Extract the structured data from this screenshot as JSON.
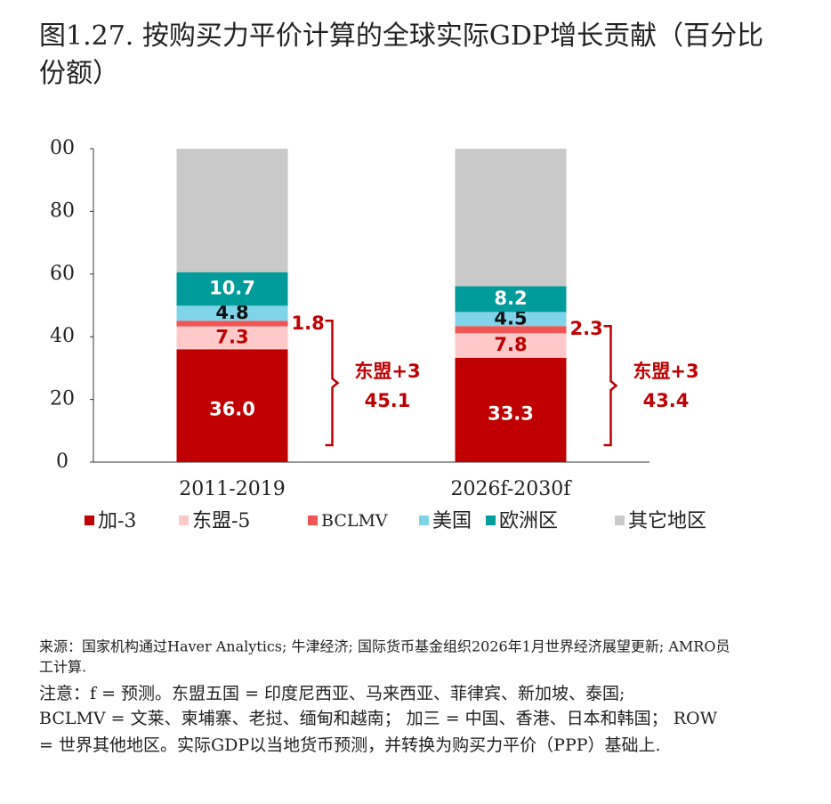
{
  "chart_data": {
    "type": "stacked_bar",
    "title": "图1.27. 按购买力平价计算的全球实际GDP增长贡献（百分比",
    "subtitle": "份额）",
    "categories": [
      "2011-2019",
      "2026f-2030f"
    ],
    "series": [
      {
        "name": "加-3",
        "color": "#c00000",
        "values": [
          36.0,
          33.3
        ],
        "value_labels": [
          "36.0",
          "33.3"
        ]
      },
      {
        "name": "东盟-5",
        "color": "#ffc9c9",
        "values": [
          7.3,
          7.8
        ],
        "value_labels": [
          "7.3",
          "7.8"
        ]
      },
      {
        "name": "BCLMV",
        "color": "#f05555",
        "values": [
          1.8,
          2.3
        ],
        "value_labels": [
          "1.8",
          "2.3"
        ]
      },
      {
        "name": "美国",
        "color": "#80d4ea",
        "values": [
          4.8,
          4.5
        ],
        "value_labels": [
          "4.8",
          "4.5"
        ]
      },
      {
        "name": "欧洲区",
        "color": "#009b9b",
        "values": [
          10.7,
          8.2
        ],
        "value_labels": [
          "10.7",
          "8.2"
        ]
      },
      {
        "name": "其它地区",
        "color": "#c9c9c9",
        "values": [
          39.4,
          43.9
        ]
      }
    ],
    "ylim": [
      0,
      100
    ],
    "yticks": [
      0,
      20,
      40,
      60,
      80,
      {
        "value": 100,
        "label": "00"
      }
    ],
    "annotations": [
      {
        "label": "东盟+3",
        "value": 45.1
      },
      {
        "label": "东盟+3",
        "value": 43.4
      }
    ],
    "notes": [
      "来源：国家机构通过Haver Analytics; 牛津经济; 国际货币基金组织2026年1月世界经济展望更新; AMRO员",
      "工计算.",
      "注意：f = 预测。东盟五国 = 印度尼西亚、马来西亚、菲律宾、新加坡、泰国;",
      "BCLMV = 文莱、柬埔寨、老挝、缅甸和越南；  加三 = 中国、香港、日本和韩国；  ROW",
      "= 世界其他地区。实际GDP以当地货币预测，并转换为购买力平价（PPP）基础上."
    ]
  }
}
